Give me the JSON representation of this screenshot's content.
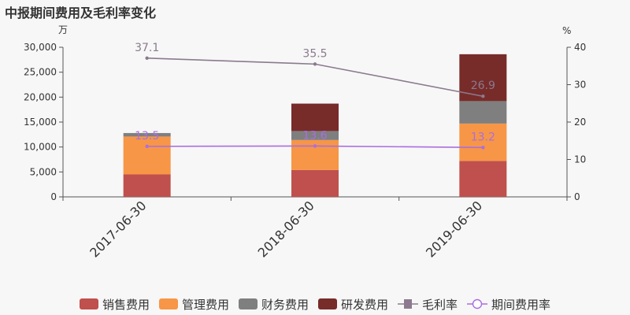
{
  "title": "中报期间费用及毛利率变化",
  "chart_data": {
    "type": "bar",
    "stacked": true,
    "categories": [
      "2017-06-30",
      "2018-06-30",
      "2019-06-30"
    ],
    "left_axis": {
      "unit": "万",
      "min": 0,
      "max": 30000,
      "ticks": [
        0,
        5000,
        10000,
        15000,
        20000,
        25000,
        30000
      ],
      "tick_labels": [
        "0",
        "5,000",
        "10,000",
        "15,000",
        "20,000",
        "25,000",
        "30,000"
      ]
    },
    "right_axis": {
      "unit": "%",
      "min": 0,
      "max": 40,
      "ticks": [
        0,
        10,
        20,
        30,
        40
      ],
      "tick_labels": [
        "0",
        "10",
        "20",
        "30",
        "40"
      ]
    },
    "series": [
      {
        "name": "销售费用",
        "type": "bar",
        "color": "#c0504d",
        "values": [
          4500,
          5400,
          7200
        ]
      },
      {
        "name": "管理费用",
        "type": "bar",
        "color": "#f79646",
        "values": [
          7600,
          6000,
          7500
        ]
      },
      {
        "name": "财务费用",
        "type": "bar",
        "color": "#7f7f7f",
        "values": [
          700,
          1800,
          4500
        ]
      },
      {
        "name": "研发费用",
        "type": "bar",
        "color": "#772c2a",
        "values": [
          0,
          5500,
          9400
        ]
      },
      {
        "name": "毛利率",
        "type": "line",
        "axis": "right",
        "color": "#8b7a8e",
        "values": [
          37.1,
          35.5,
          26.9
        ],
        "labels": [
          "37.1",
          "35.5",
          "26.9"
        ],
        "marker": "square"
      },
      {
        "name": "期间费用率",
        "type": "line",
        "axis": "right",
        "color": "#a96ee0",
        "values": [
          13.5,
          13.6,
          13.2
        ],
        "labels": [
          "13.5",
          "13.6",
          "13.2"
        ],
        "marker": "circle"
      }
    ],
    "grid": false,
    "legend_position": "bottom"
  }
}
